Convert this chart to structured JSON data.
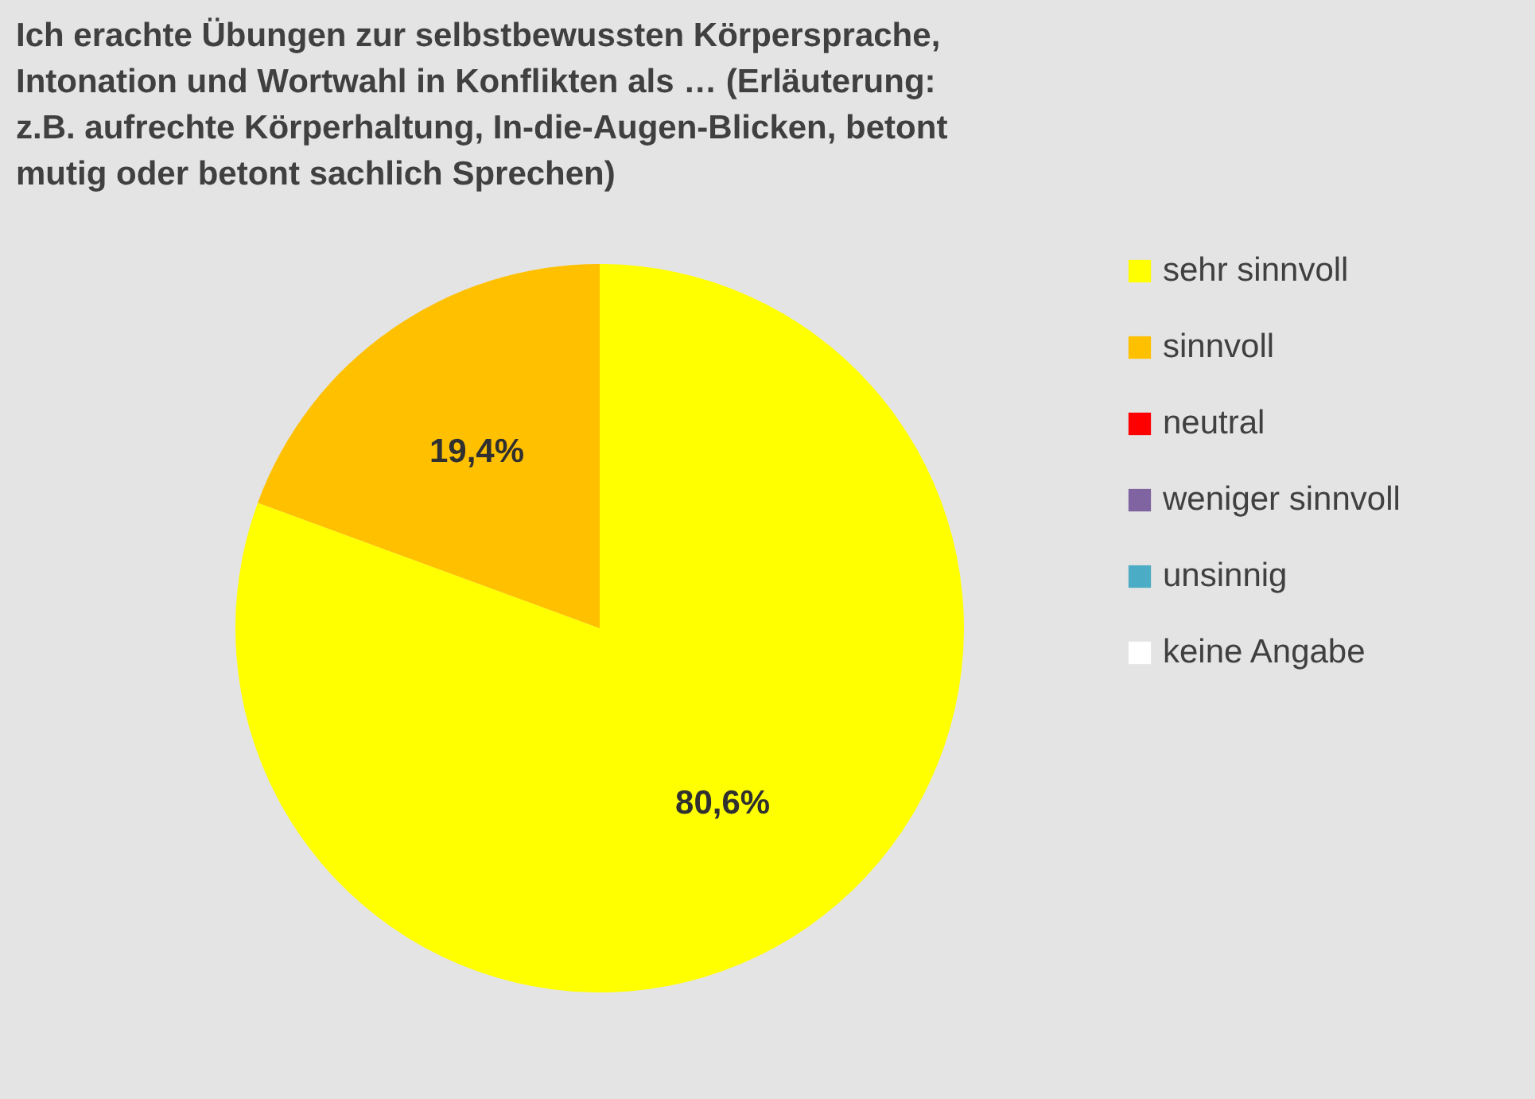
{
  "chart_data": {
    "type": "pie",
    "title": "Ich erachte Übungen zur selbstbewussten Körpersprache, Intonation und Wortwahl in Konflikten als … (Erläuterung: z.B. aufrechte Körperhaltung, In-die-Augen-Blicken, betont mutig oder betont sachlich Sprechen)",
    "categories": [
      "sehr sinnvoll",
      "sinnvoll",
      "neutral",
      "weniger sinnvoll",
      "unsinnig",
      "keine Angabe"
    ],
    "values": [
      80.6,
      19.4,
      0,
      0,
      0,
      0
    ],
    "colors": [
      "#ffff00",
      "#ffc000",
      "#ff0000",
      "#8064a2",
      "#4bacc6",
      "#ffffff"
    ],
    "value_labels": [
      "80,6%",
      "19,4%",
      null,
      null,
      null,
      null
    ],
    "legend": "right"
  }
}
